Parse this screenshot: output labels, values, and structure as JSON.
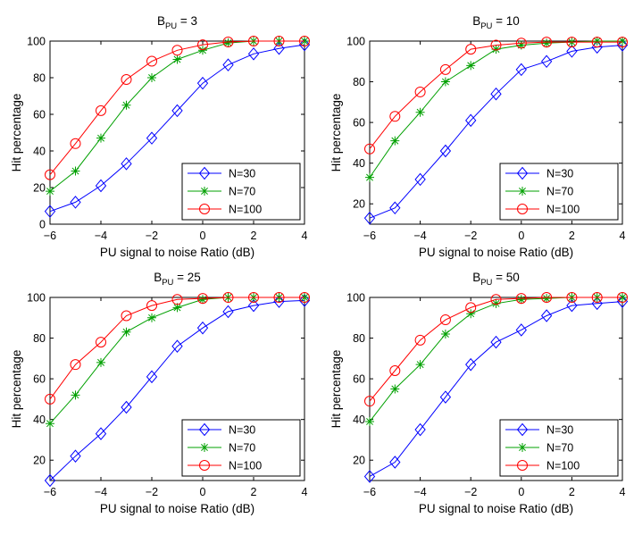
{
  "colors": {
    "n30": "#0000ff",
    "n70": "#00a000",
    "n100": "#ff0000",
    "axis": "#000000",
    "background": "#ffffff"
  },
  "chart_data": [
    {
      "type": "line",
      "title": {
        "main": "B",
        "subscript": "PU",
        "suffix": " = 3"
      },
      "xlabel": "PU signal to noise Ratio (dB)",
      "ylabel": "Hit percentage",
      "xlim": [
        -6,
        4
      ],
      "ylim": [
        0,
        100
      ],
      "xticks": [
        -6,
        -4,
        -2,
        0,
        2,
        4
      ],
      "yticks": [
        0,
        20,
        40,
        60,
        80,
        100
      ],
      "legend_position": "bottom-right",
      "x": [
        -6,
        -5,
        -4,
        -3,
        -2,
        -1,
        0,
        1,
        2,
        3,
        4
      ],
      "series": [
        {
          "name": "N=30",
          "marker": "diamond",
          "color": "#0000ff",
          "values": [
            7,
            12,
            21,
            33,
            47,
            62,
            77,
            87,
            93,
            96,
            98
          ]
        },
        {
          "name": "N=70",
          "marker": "star",
          "color": "#00a000",
          "values": [
            18,
            29,
            47,
            65,
            80,
            90,
            95,
            99,
            100,
            100,
            100
          ]
        },
        {
          "name": "N=100",
          "marker": "circle",
          "color": "#ff0000",
          "values": [
            27,
            44,
            62,
            79,
            89,
            95,
            98,
            99.5,
            100,
            100,
            100
          ]
        }
      ]
    },
    {
      "type": "line",
      "title": {
        "main": "B",
        "subscript": "PU",
        "suffix": " = 10"
      },
      "xlabel": "PU signal to noise Ratio (dB)",
      "ylabel": "Hit percentage",
      "xlim": [
        -6,
        4
      ],
      "ylim": [
        10,
        100
      ],
      "xticks": [
        -6,
        -4,
        -2,
        0,
        2,
        4
      ],
      "yticks": [
        20,
        40,
        60,
        80,
        100
      ],
      "legend_position": "bottom-right",
      "x": [
        -6,
        -5,
        -4,
        -3,
        -2,
        -1,
        0,
        1,
        2,
        3,
        4
      ],
      "series": [
        {
          "name": "N=30",
          "marker": "diamond",
          "color": "#0000ff",
          "values": [
            13,
            18,
            32,
            46,
            61,
            74,
            86,
            90,
            95,
            97,
            98
          ]
        },
        {
          "name": "N=70",
          "marker": "star",
          "color": "#00a000",
          "values": [
            33,
            51,
            65,
            80,
            88,
            96,
            98,
            99,
            99.5,
            100,
            100
          ]
        },
        {
          "name": "N=100",
          "marker": "circle",
          "color": "#ff0000",
          "values": [
            47,
            63,
            75,
            86,
            96,
            98,
            99,
            99.5,
            99.5,
            99.5,
            99.5
          ]
        }
      ]
    },
    {
      "type": "line",
      "title": {
        "main": "B",
        "subscript": "PU",
        "suffix": " = 25"
      },
      "xlabel": "PU signal to noise Ratio (dB)",
      "ylabel": "Hit percentage",
      "xlim": [
        -6,
        4
      ],
      "ylim": [
        10,
        100
      ],
      "xticks": [
        -6,
        -4,
        -2,
        0,
        2,
        4
      ],
      "yticks": [
        20,
        40,
        60,
        80,
        100
      ],
      "legend_position": "bottom-right",
      "x": [
        -6,
        -5,
        -4,
        -3,
        -2,
        -1,
        0,
        1,
        2,
        3,
        4
      ],
      "series": [
        {
          "name": "N=30",
          "marker": "diamond",
          "color": "#0000ff",
          "values": [
            10,
            22,
            33,
            46,
            61,
            76,
            85,
            93,
            96,
            98,
            98.5
          ]
        },
        {
          "name": "N=70",
          "marker": "star",
          "color": "#00a000",
          "values": [
            38,
            52,
            68,
            83,
            90,
            95,
            99,
            100,
            100,
            100,
            100
          ]
        },
        {
          "name": "N=100",
          "marker": "circle",
          "color": "#ff0000",
          "values": [
            50,
            67,
            78,
            91,
            96,
            99,
            99.5,
            100,
            100,
            100,
            100
          ]
        }
      ]
    },
    {
      "type": "line",
      "title": {
        "main": "B",
        "subscript": "PU",
        "suffix": " = 50"
      },
      "xlabel": "PU signal to noise Ratio (dB)",
      "ylabel": "Hit percentage",
      "xlim": [
        -6,
        4
      ],
      "ylim": [
        10,
        100
      ],
      "xticks": [
        -6,
        -4,
        -2,
        0,
        2,
        4
      ],
      "yticks": [
        20,
        40,
        60,
        80,
        100
      ],
      "legend_position": "bottom-right",
      "x": [
        -6,
        -5,
        -4,
        -3,
        -2,
        -1,
        0,
        1,
        2,
        3,
        4
      ],
      "series": [
        {
          "name": "N=30",
          "marker": "diamond",
          "color": "#0000ff",
          "values": [
            12,
            19,
            35,
            51,
            67,
            78,
            84,
            91,
            96,
            97,
            98
          ]
        },
        {
          "name": "N=70",
          "marker": "star",
          "color": "#00a000",
          "values": [
            39,
            55,
            67,
            82,
            92,
            97,
            99,
            99.5,
            100,
            100,
            100
          ]
        },
        {
          "name": "N=100",
          "marker": "circle",
          "color": "#ff0000",
          "values": [
            49,
            64,
            79,
            89,
            95,
            99,
            99.5,
            100,
            100,
            100,
            100
          ]
        }
      ]
    }
  ]
}
